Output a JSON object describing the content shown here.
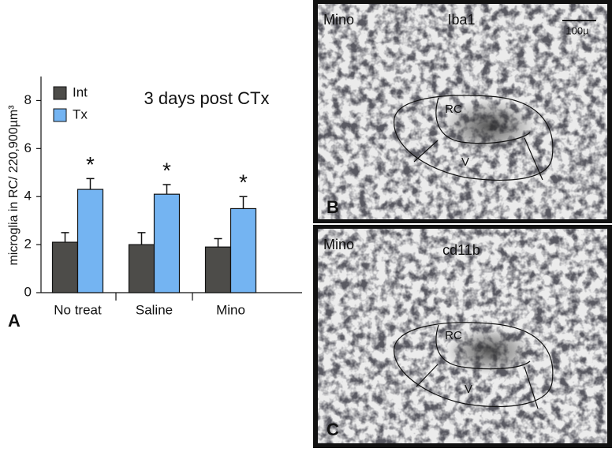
{
  "chart_data": {
    "type": "bar",
    "panel_label": "A",
    "title": "3 days post CTx",
    "y_label": "microglia in RC/ 220,900µm³",
    "categories": [
      "No treat",
      "Saline",
      "Mino"
    ],
    "series": [
      {
        "name": "Int",
        "color": "#4d4c49",
        "values": [
          2.1,
          2.0,
          1.9
        ],
        "errors": [
          0.4,
          0.5,
          0.35
        ]
      },
      {
        "name": "Tx",
        "color": "#74b4f2",
        "values": [
          4.3,
          4.1,
          3.5
        ],
        "errors": [
          0.45,
          0.4,
          0.5
        ]
      }
    ],
    "significance_marks": [
      "*",
      "*",
      "*"
    ],
    "ylim": [
      0,
      9
    ],
    "yticks": [
      0,
      2,
      4,
      6,
      8
    ],
    "grid": false
  },
  "figure_panels": [
    {
      "letter": "B",
      "treatment": "Mino",
      "stain": "Iba1",
      "scale_bar": "100µ",
      "regions": [
        "RC",
        "V"
      ]
    },
    {
      "letter": "C",
      "treatment": "Mino",
      "stain": "cd11b",
      "regions": [
        "RC",
        "V"
      ]
    }
  ]
}
